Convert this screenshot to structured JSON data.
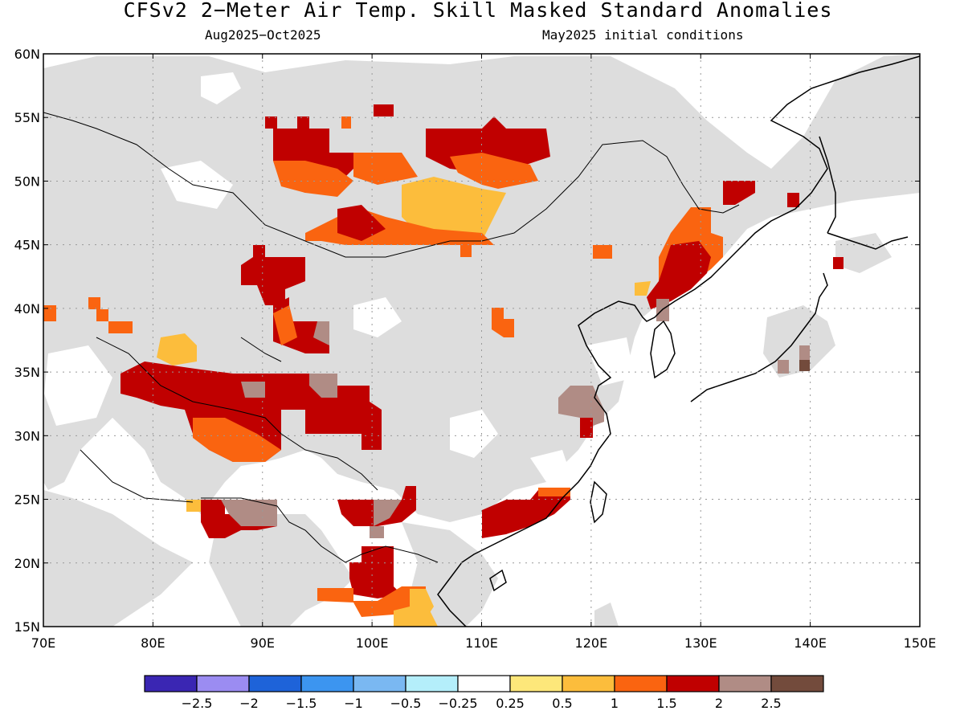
{
  "title": "CFSv2 2−Meter Air Temp. Skill Masked Standard Anomalies",
  "subtitle_left": "Aug2025−Oct2025",
  "subtitle_right": "May2025 initial conditions",
  "map": {
    "lat_ticks": [
      "60N",
      "55N",
      "50N",
      "45N",
      "40N",
      "35N",
      "30N",
      "25N",
      "20N",
      "15N"
    ],
    "lon_ticks": [
      "70E",
      "80E",
      "90E",
      "100E",
      "110E",
      "120E",
      "130E",
      "140E",
      "150E"
    ],
    "extent": {
      "lon": [
        70,
        150
      ],
      "lat": [
        15,
        60
      ]
    },
    "mask_color": "#dddddd",
    "grid": "dotted"
  },
  "legend": {
    "colors": [
      "#3a26b3",
      "#9b8cf2",
      "#1e63d9",
      "#3c95f0",
      "#7ab8f2",
      "#b4eefa",
      "#ffffff",
      "#fde77a",
      "#fcbd3c",
      "#fa6410",
      "#c00000",
      "#b08c85",
      "#734b3c"
    ],
    "labels": [
      "−2.5",
      "−2",
      "−1.5",
      "−1",
      "−0.5",
      "−0.25",
      "0.25",
      "0.5",
      "1",
      "1.5",
      "2",
      "2.5"
    ]
  }
}
